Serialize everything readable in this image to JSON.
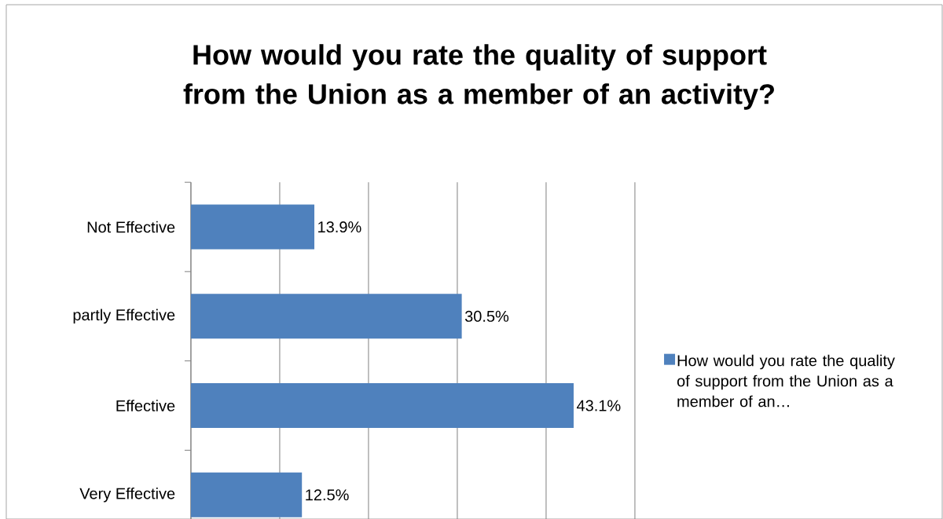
{
  "chart_data": {
    "type": "bar",
    "orientation": "horizontal",
    "title": "How would you rate the quality of support from the Union as a member of an activity?",
    "categories": [
      "Not Effective",
      "partly Effective",
      "Effective",
      "Very Effective"
    ],
    "series": [
      {
        "name": "How would you rate the quality of support from the Union as a member of an…",
        "color": "#4f81bd",
        "values": [
          13.9,
          30.5,
          43.1,
          12.5
        ],
        "value_labels": [
          "13.9%",
          "30.5%",
          "43.1%",
          "12.5%"
        ]
      }
    ],
    "xlim": [
      0,
      50
    ],
    "xticks": [
      {
        "value": 0,
        "label": null
      },
      {
        "value": 10,
        "label": null
      },
      {
        "value": 20,
        "label": null
      },
      {
        "value": 30,
        "label": null
      },
      {
        "value": 40,
        "label": null
      },
      {
        "value": 50,
        "label": null
      }
    ],
    "grid": "x",
    "legend": "right",
    "tick_labels": "y"
  }
}
